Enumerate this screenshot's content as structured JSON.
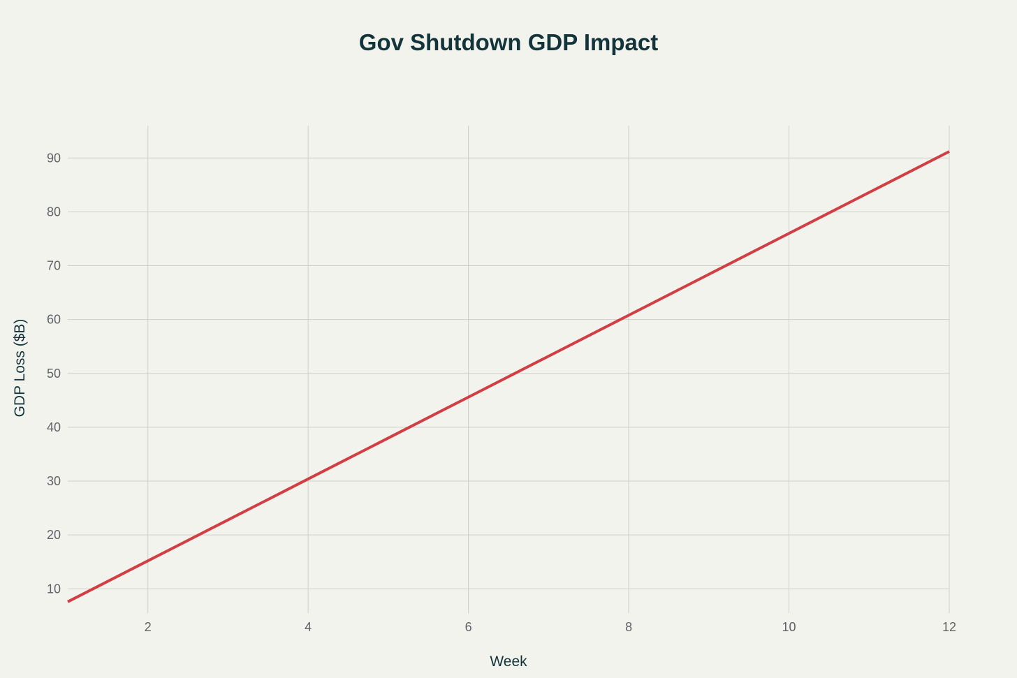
{
  "chart_data": {
    "type": "line",
    "title": "Gov Shutdown GDP Impact",
    "xlabel": "Week",
    "ylabel": "GDP Loss ($B)",
    "xlim": [
      1,
      12
    ],
    "ylim": [
      5.5,
      96
    ],
    "x_ticks": [
      2,
      4,
      6,
      8,
      10,
      12
    ],
    "y_ticks": [
      10,
      20,
      30,
      40,
      50,
      60,
      70,
      80,
      90
    ],
    "grid": true,
    "legend": "none",
    "series": [
      {
        "color": "#d13f45",
        "x": [
          1,
          2,
          3,
          4,
          5,
          6,
          7,
          8,
          9,
          10,
          11,
          12
        ],
        "values": [
          7.6,
          15.2,
          22.8,
          30.4,
          38.0,
          45.6,
          53.2,
          60.8,
          68.4,
          76.0,
          83.6,
          91.2
        ]
      }
    ]
  }
}
